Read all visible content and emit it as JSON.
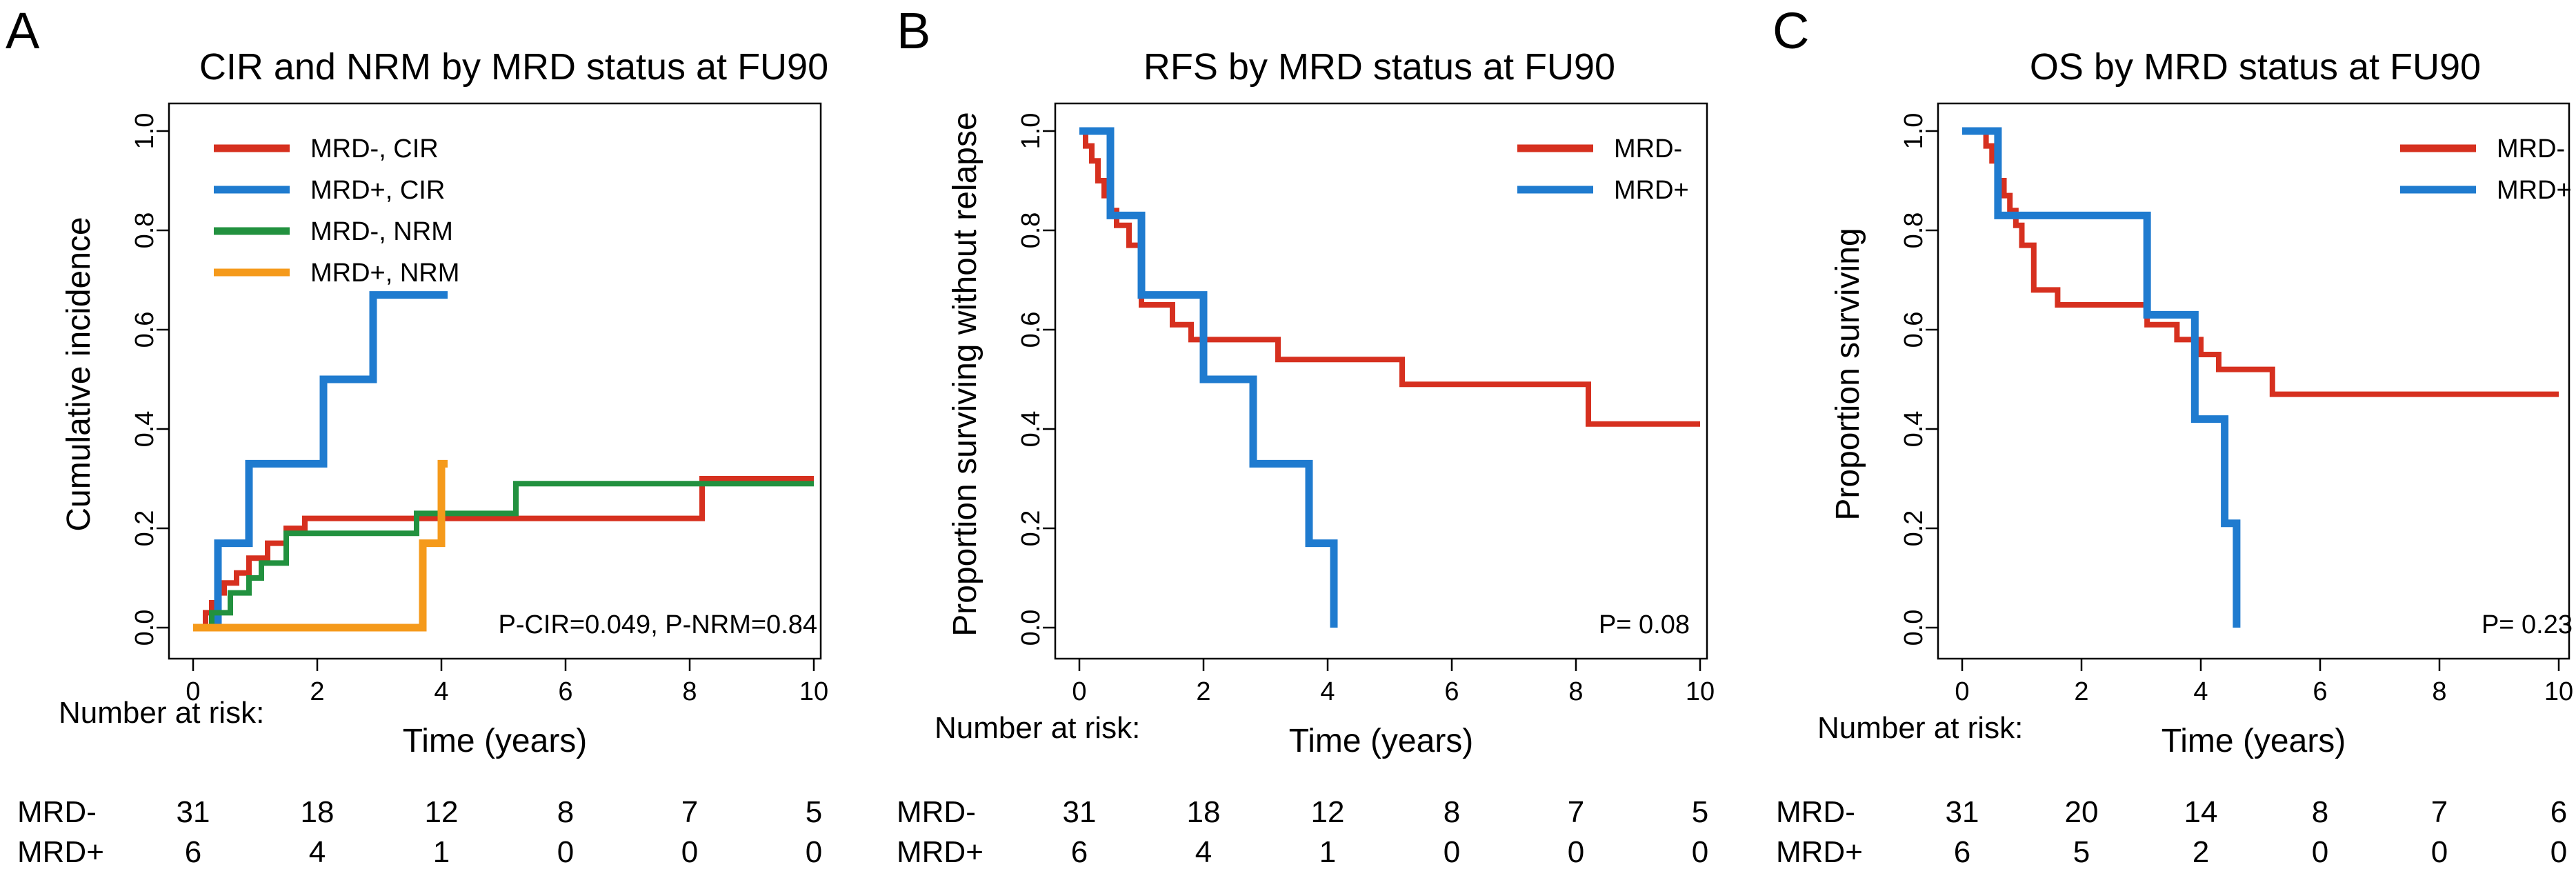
{
  "chart_data": [
    {
      "type": "line",
      "letter": "A",
      "title": "CIR and NRM by MRD status at FU90",
      "xlabel": "Time (years)",
      "ylabel": "Cumulative incidence",
      "xlim": [
        0,
        10
      ],
      "ylim": [
        0,
        1
      ],
      "xticks": [
        "0",
        "2",
        "4",
        "6",
        "8",
        "10"
      ],
      "yticks": [
        "0.0",
        "0.2",
        "0.4",
        "0.6",
        "0.8",
        "1.0"
      ],
      "legend_position": "top-left",
      "annotation": "P-CIR=0.049, P-NRM=0.84",
      "series": [
        {
          "name": "MRD-, CIR",
          "color": "#d6301f",
          "x": [
            0,
            0.2,
            0.3,
            0.4,
            0.5,
            0.7,
            0.9,
            1.2,
            1.5,
            1.8,
            4.0,
            8.2,
            10
          ],
          "y": [
            0,
            0.03,
            0.05,
            0.07,
            0.09,
            0.11,
            0.14,
            0.17,
            0.2,
            0.22,
            0.22,
            0.3,
            0.3
          ]
        },
        {
          "name": "MRD+, CIR",
          "color": "#1f7bcf",
          "x": [
            0,
            0.4,
            0.9,
            2.1,
            2.9,
            4.1
          ],
          "y": [
            0,
            0.17,
            0.33,
            0.5,
            0.67,
            0.67
          ]
        },
        {
          "name": "MRD-, NRM",
          "color": "#22913f",
          "x": [
            0,
            0.3,
            0.6,
            0.9,
            1.1,
            1.5,
            3.6,
            5.2,
            10
          ],
          "y": [
            0,
            0.03,
            0.07,
            0.1,
            0.13,
            0.19,
            0.23,
            0.29,
            0.29
          ]
        },
        {
          "name": "MRD+, NRM",
          "color": "#f59a1b",
          "x": [
            0,
            3.7,
            4.0,
            4.1
          ],
          "y": [
            0,
            0.17,
            0.33,
            0.33
          ]
        }
      ],
      "risk_table": {
        "header": "Number at risk:",
        "rows": [
          {
            "label": "MRD-",
            "values": [
              "31",
              "18",
              "12",
              "8",
              "7",
              "5"
            ]
          },
          {
            "label": "MRD+",
            "values": [
              "6",
              "4",
              "1",
              "0",
              "0",
              "0"
            ]
          }
        ]
      }
    },
    {
      "type": "line",
      "letter": "B",
      "title": "RFS by MRD status at FU90",
      "xlabel": "Time (years)",
      "ylabel": "Proportion surviving without relapse",
      "xlim": [
        0,
        10
      ],
      "ylim": [
        0,
        1
      ],
      "xticks": [
        "0",
        "2",
        "4",
        "6",
        "8",
        "10"
      ],
      "yticks": [
        "0.0",
        "0.2",
        "0.4",
        "0.6",
        "0.8",
        "1.0"
      ],
      "legend_position": "top-right",
      "annotation": "P= 0.08",
      "series": [
        {
          "name": "MRD-",
          "color": "#d6301f",
          "x": [
            0,
            0.1,
            0.2,
            0.3,
            0.4,
            0.5,
            0.6,
            0.8,
            1.0,
            1.5,
            1.8,
            3.2,
            5.2,
            8.2,
            10
          ],
          "y": [
            1.0,
            0.97,
            0.94,
            0.9,
            0.87,
            0.84,
            0.81,
            0.77,
            0.65,
            0.61,
            0.58,
            0.54,
            0.49,
            0.41,
            0.41
          ]
        },
        {
          "name": "MRD+",
          "color": "#1f7bcf",
          "x": [
            0,
            0.5,
            1.0,
            2.0,
            2.8,
            3.7,
            4.1
          ],
          "y": [
            1.0,
            0.83,
            0.67,
            0.5,
            0.33,
            0.17,
            0.0
          ]
        }
      ],
      "risk_table": {
        "header": "Number at risk:",
        "rows": [
          {
            "label": "MRD-",
            "values": [
              "31",
              "18",
              "12",
              "8",
              "7",
              "5"
            ]
          },
          {
            "label": "MRD+",
            "values": [
              "6",
              "4",
              "1",
              "0",
              "0",
              "0"
            ]
          }
        ]
      }
    },
    {
      "type": "line",
      "letter": "C",
      "title": "OS by MRD status at FU90",
      "xlabel": "Time (years)",
      "ylabel": "Proportion surviving",
      "xlim": [
        0,
        10
      ],
      "ylim": [
        0,
        1
      ],
      "xticks": [
        "0",
        "2",
        "4",
        "6",
        "8",
        "10"
      ],
      "yticks": [
        "0.0",
        "0.2",
        "0.4",
        "0.6",
        "0.8",
        "1.0"
      ],
      "legend_position": "top-right",
      "annotation": "P= 0.23",
      "series": [
        {
          "name": "MRD-",
          "color": "#d6301f",
          "x": [
            0,
            0.4,
            0.5,
            0.6,
            0.7,
            0.8,
            0.9,
            1.0,
            1.2,
            1.6,
            3.1,
            3.6,
            4.0,
            4.3,
            4.5,
            5.2,
            10
          ],
          "y": [
            1.0,
            0.97,
            0.94,
            0.9,
            0.87,
            0.84,
            0.81,
            0.77,
            0.68,
            0.65,
            0.61,
            0.58,
            0.55,
            0.52,
            0.52,
            0.47,
            0.47
          ]
        },
        {
          "name": "MRD+",
          "color": "#1f7bcf",
          "x": [
            0,
            0.6,
            3.1,
            3.9,
            4.4,
            4.6
          ],
          "y": [
            1.0,
            0.83,
            0.63,
            0.42,
            0.21,
            0.0
          ]
        }
      ],
      "risk_table": {
        "header": "Number at risk:",
        "rows": [
          {
            "label": "MRD-",
            "values": [
              "31",
              "20",
              "14",
              "8",
              "7",
              "6"
            ]
          },
          {
            "label": "MRD+",
            "values": [
              "6",
              "5",
              "2",
              "0",
              "0",
              "0"
            ]
          }
        ]
      }
    }
  ]
}
